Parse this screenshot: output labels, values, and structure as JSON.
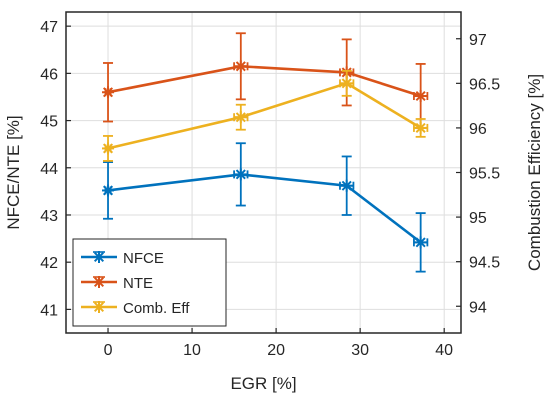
{
  "chart_data": {
    "type": "line",
    "xlabel": "EGR [%]",
    "ylabel": "NFCE/NTE [%]",
    "y2label": "Combustion Efficiency [%]",
    "xlim": [
      -5,
      42
    ],
    "ylim": [
      40.5,
      47.3
    ],
    "y2lim": [
      93.7,
      97.3
    ],
    "xticks": [
      "0",
      "10",
      "20",
      "30",
      "40"
    ],
    "yticks": [
      "41",
      "42",
      "43",
      "44",
      "45",
      "46",
      "47"
    ],
    "y2ticks": [
      "94",
      "94.5",
      "95",
      "95.5",
      "96",
      "96.5",
      "97"
    ],
    "grid": true,
    "legend_position": "lower-left",
    "series": [
      {
        "name": "NFCE",
        "axis": "left",
        "color": "#0072BD",
        "x": [
          0,
          15.8,
          28.4,
          37.2
        ],
        "xerr": [
          0.3,
          0.8,
          0.8,
          0.8
        ],
        "y": [
          43.52,
          43.86,
          43.62,
          42.42
        ],
        "yerr": [
          0.6,
          0.66,
          0.62,
          0.62
        ],
        "marker": "asterisk"
      },
      {
        "name": "NTE",
        "axis": "left",
        "color": "#D95319",
        "x": [
          0,
          15.8,
          28.4,
          37.2
        ],
        "xerr": [
          0.3,
          0.8,
          0.8,
          0.8
        ],
        "y": [
          45.6,
          46.15,
          46.02,
          45.52
        ],
        "yerr": [
          0.62,
          0.7,
          0.7,
          0.68
        ],
        "marker": "asterisk"
      },
      {
        "name": "Comb. Eff",
        "axis": "right",
        "color": "#EDB120",
        "x": [
          0,
          15.8,
          28.4,
          37.2
        ],
        "xerr": [
          0.3,
          0.8,
          0.8,
          0.8
        ],
        "y": [
          95.77,
          96.12,
          96.5,
          96.0
        ],
        "yerr": [
          0.14,
          0.14,
          0.14,
          0.1
        ],
        "marker": "asterisk"
      }
    ]
  }
}
